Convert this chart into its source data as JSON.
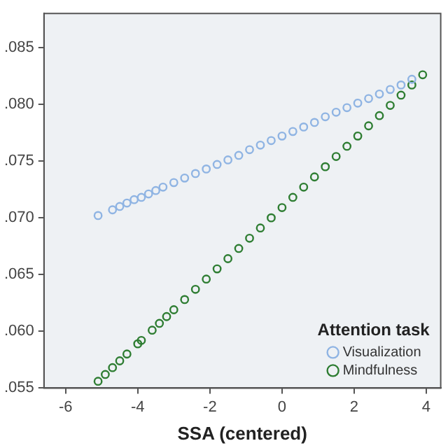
{
  "chart_data": {
    "type": "scatter",
    "xlabel": "SSA (centered)",
    "legend_title": "Attention task",
    "legend": "bottom right",
    "marker": "circle",
    "xlim": [
      -6.6,
      4.4
    ],
    "xticks": [
      -6,
      -4,
      -2,
      0,
      2,
      4
    ],
    "ylim": [
      0.055,
      0.088
    ],
    "yticks": [
      {
        "value": 0.055,
        "label": ".055"
      },
      {
        "value": 0.06,
        "label": ".060"
      },
      {
        "value": 0.065,
        "label": ".065"
      },
      {
        "value": 0.07,
        "label": ".070"
      },
      {
        "value": 0.075,
        "label": ".075"
      },
      {
        "value": 0.08,
        "label": ".080"
      },
      {
        "value": 0.085,
        "label": ".085"
      }
    ],
    "series": [
      {
        "name": "Visualization",
        "color": "#8fb4e3",
        "x": [
          -5.1,
          -4.7,
          -4.5,
          -4.3,
          -4.1,
          -3.9,
          -3.7,
          -3.5,
          -3.3,
          -3.0,
          -2.7,
          -2.4,
          -2.1,
          -1.8,
          -1.5,
          -1.2,
          -0.9,
          -0.6,
          -0.3,
          0,
          0.3,
          0.6,
          0.9,
          1.2,
          1.5,
          1.8,
          2.1,
          2.4,
          2.7,
          3.0,
          3.3,
          3.6
        ],
        "values": [
          0.0702,
          0.0707,
          0.071,
          0.0713,
          0.0716,
          0.0718,
          0.0721,
          0.0724,
          0.0727,
          0.0731,
          0.0735,
          0.0739,
          0.0743,
          0.0747,
          0.0751,
          0.0755,
          0.076,
          0.0764,
          0.0768,
          0.0772,
          0.0776,
          0.078,
          0.0784,
          0.0789,
          0.0793,
          0.0797,
          0.0801,
          0.0805,
          0.0809,
          0.0813,
          0.0817,
          0.0822
        ]
      },
      {
        "name": "Mindfulness",
        "color": "#2e7d32",
        "x": [
          -5.1,
          -4.9,
          -4.7,
          -4.5,
          -4.3,
          -4.0,
          -3.9,
          -3.6,
          -3.4,
          -3.2,
          -3.0,
          -2.7,
          -2.4,
          -2.1,
          -1.8,
          -1.5,
          -1.2,
          -0.9,
          -0.6,
          -0.3,
          0,
          0.3,
          0.6,
          0.9,
          1.2,
          1.5,
          1.8,
          2.1,
          2.4,
          2.7,
          3.0,
          3.3,
          3.6,
          3.9
        ],
        "values": [
          0.0556,
          0.0562,
          0.0568,
          0.0574,
          0.058,
          0.0589,
          0.0592,
          0.0601,
          0.0607,
          0.0613,
          0.0619,
          0.0628,
          0.0637,
          0.0646,
          0.0655,
          0.0664,
          0.0673,
          0.0682,
          0.0691,
          0.07,
          0.0709,
          0.0718,
          0.0727,
          0.0736,
          0.0745,
          0.0754,
          0.0763,
          0.0772,
          0.0781,
          0.079,
          0.0799,
          0.0808,
          0.0817,
          0.0826
        ]
      }
    ]
  }
}
